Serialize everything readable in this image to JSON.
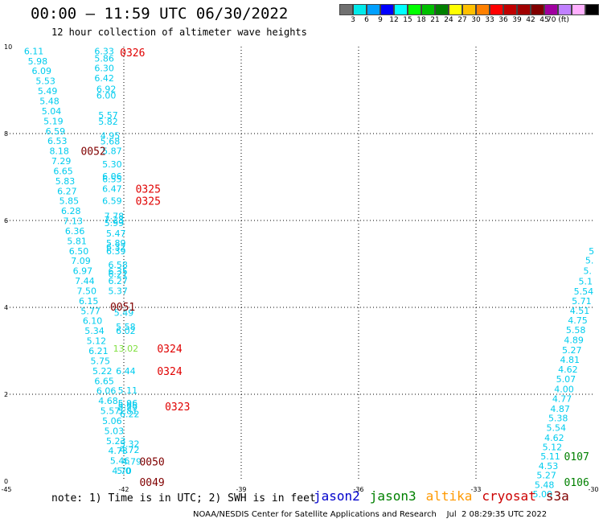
{
  "header": {
    "title": "00:00 – 11:59 UTC 06/30/2022",
    "subtitle": "12 hour collection of altimeter wave heights"
  },
  "legend": {
    "colors": [
      "#707070",
      "#00eaea",
      "#00a0ff",
      "#0000ff",
      "#00ffff",
      "#00ff00",
      "#00c000",
      "#008000",
      "#ffff00",
      "#ffc000",
      "#ff8000",
      "#ff0000",
      "#c00000",
      "#a00000",
      "#800000",
      "#a000a0",
      "#c080ff",
      "#ffb0ff",
      "#000000"
    ],
    "ticks": [
      "3",
      "6",
      "9",
      "12",
      "15",
      "18",
      "21",
      "24",
      "27",
      "30",
      "33",
      "36",
      "39",
      "42",
      "45",
      "70 (ft)"
    ]
  },
  "map": {
    "lon_range": [
      -45,
      -30
    ],
    "lat_range": [
      0,
      10
    ],
    "x_ticks": [
      "-45",
      "-42",
      "-39",
      "-36",
      "-33",
      "-30"
    ],
    "y_ticks": [
      "0",
      "2",
      "4",
      "6",
      "8",
      "10"
    ],
    "grid_x": [
      -42,
      -39,
      -36,
      -33
    ],
    "grid_y": [
      2,
      4,
      6,
      8
    ],
    "grid": "dotted"
  },
  "tracks": [
    {
      "series": "t1",
      "color": "#00ccee",
      "points": [
        {
          "lon": -44.3,
          "lat": 9.9,
          "v": "6.11"
        },
        {
          "lon": -44.2,
          "lat": 9.67,
          "v": "5.98"
        },
        {
          "lon": -44.1,
          "lat": 9.44,
          "v": "6.09"
        },
        {
          "lon": -44.0,
          "lat": 9.21,
          "v": "5.53"
        },
        {
          "lon": -43.95,
          "lat": 8.98,
          "v": "5.49"
        },
        {
          "lon": -43.9,
          "lat": 8.75,
          "v": "5.48"
        },
        {
          "lon": -43.85,
          "lat": 8.52,
          "v": "5.04"
        },
        {
          "lon": -43.8,
          "lat": 8.29,
          "v": "5.19"
        },
        {
          "lon": -43.75,
          "lat": 8.06,
          "v": "6.59"
        },
        {
          "lon": -43.7,
          "lat": 7.83,
          "v": "6.53"
        },
        {
          "lon": -43.65,
          "lat": 7.6,
          "v": "8.18"
        },
        {
          "lon": -43.6,
          "lat": 7.37,
          "v": "7.29"
        },
        {
          "lon": -43.55,
          "lat": 7.14,
          "v": "6.65"
        },
        {
          "lon": -43.5,
          "lat": 6.91,
          "v": "5.83"
        },
        {
          "lon": -43.45,
          "lat": 6.68,
          "v": "6.27"
        },
        {
          "lon": -43.4,
          "lat": 6.45,
          "v": "5.85"
        },
        {
          "lon": -43.35,
          "lat": 6.22,
          "v": "6.28"
        },
        {
          "lon": -43.3,
          "lat": 5.99,
          "v": "7.13"
        },
        {
          "lon": -43.25,
          "lat": 5.76,
          "v": "6.36"
        },
        {
          "lon": -43.2,
          "lat": 5.53,
          "v": "5.81"
        },
        {
          "lon": -43.15,
          "lat": 5.3,
          "v": "6.50"
        },
        {
          "lon": -43.1,
          "lat": 5.07,
          "v": "7.09"
        },
        {
          "lon": -43.05,
          "lat": 4.84,
          "v": "6.97"
        },
        {
          "lon": -43.0,
          "lat": 4.61,
          "v": "7.44"
        },
        {
          "lon": -42.95,
          "lat": 4.38,
          "v": "7.50"
        },
        {
          "lon": -42.9,
          "lat": 4.15,
          "v": "6.15"
        },
        {
          "lon": -42.85,
          "lat": 3.92,
          "v": "5.77"
        },
        {
          "lon": -42.8,
          "lat": 3.69,
          "v": "6.10"
        },
        {
          "lon": -42.75,
          "lat": 3.46,
          "v": "5.34"
        },
        {
          "lon": -42.7,
          "lat": 3.23,
          "v": "5.12"
        },
        {
          "lon": -42.65,
          "lat": 3.0,
          "v": "6.21"
        },
        {
          "lon": -42.6,
          "lat": 2.77,
          "v": "5.75"
        },
        {
          "lon": -42.55,
          "lat": 2.54,
          "v": "5.22"
        },
        {
          "lon": -42.5,
          "lat": 2.31,
          "v": "6.65"
        },
        {
          "lon": -42.45,
          "lat": 2.08,
          "v": "6.06"
        },
        {
          "lon": -42.4,
          "lat": 1.85,
          "v": "4.68"
        },
        {
          "lon": -42.35,
          "lat": 1.62,
          "v": "5.57"
        },
        {
          "lon": -42.3,
          "lat": 1.39,
          "v": "5.06"
        },
        {
          "lon": -42.25,
          "lat": 1.16,
          "v": "5.03"
        },
        {
          "lon": -42.2,
          "lat": 0.93,
          "v": "5.23"
        },
        {
          "lon": -42.15,
          "lat": 0.7,
          "v": "4.73"
        },
        {
          "lon": -42.1,
          "lat": 0.47,
          "v": "5.46"
        },
        {
          "lon": -42.05,
          "lat": 0.24,
          "v": "4.70"
        },
        {
          "lon": -42.0,
          "lat": 0.24,
          "v": "5.0"
        }
      ]
    },
    {
      "series": "t2",
      "color": "#00ccee",
      "points": [
        {
          "lon": -42.5,
          "lat": 9.9,
          "v": "6.33"
        },
        {
          "lon": -42.5,
          "lat": 9.73,
          "v": "5.86"
        },
        {
          "lon": -42.5,
          "lat": 9.51,
          "v": "6.30"
        },
        {
          "lon": -42.5,
          "lat": 9.28,
          "v": "6.42"
        },
        {
          "lon": -42.45,
          "lat": 9.03,
          "v": "6.92"
        },
        {
          "lon": -42.45,
          "lat": 8.88,
          "v": "6.00"
        },
        {
          "lon": -42.4,
          "lat": 8.43,
          "v": "5.57"
        },
        {
          "lon": -42.4,
          "lat": 8.28,
          "v": "5.82"
        },
        {
          "lon": -42.35,
          "lat": 7.95,
          "v": "4.95"
        },
        {
          "lon": -42.35,
          "lat": 7.82,
          "v": "5.68"
        },
        {
          "lon": -42.3,
          "lat": 7.6,
          "v": "5.87"
        },
        {
          "lon": -42.3,
          "lat": 7.3,
          "v": "5.30"
        },
        {
          "lon": -42.3,
          "lat": 7.02,
          "v": "6.06"
        },
        {
          "lon": -42.3,
          "lat": 6.95,
          "v": "6.55"
        },
        {
          "lon": -42.3,
          "lat": 6.73,
          "v": "6.47"
        },
        {
          "lon": -42.3,
          "lat": 6.45,
          "v": "6.59"
        },
        {
          "lon": -42.25,
          "lat": 6.1,
          "v": "7.78"
        },
        {
          "lon": -42.25,
          "lat": 6.02,
          "v": "7.23"
        },
        {
          "lon": -42.25,
          "lat": 5.94,
          "v": "5.99"
        },
        {
          "lon": -42.2,
          "lat": 5.7,
          "v": "5.47"
        },
        {
          "lon": -42.2,
          "lat": 5.48,
          "v": "5.89"
        },
        {
          "lon": -42.2,
          "lat": 5.39,
          "v": "6.32"
        },
        {
          "lon": -42.2,
          "lat": 5.3,
          "v": "6.39"
        },
        {
          "lon": -42.15,
          "lat": 4.98,
          "v": "6.58"
        },
        {
          "lon": -42.15,
          "lat": 4.83,
          "v": "6.35"
        },
        {
          "lon": -42.15,
          "lat": 4.77,
          "v": "6.21"
        },
        {
          "lon": -42.15,
          "lat": 4.61,
          "v": "6.27"
        },
        {
          "lon": -42.15,
          "lat": 4.38,
          "v": "5.37"
        },
        {
          "lon": -42.0,
          "lat": 3.88,
          "v": "5.49"
        },
        {
          "lon": -41.95,
          "lat": 3.56,
          "v": "5.58"
        },
        {
          "lon": -41.95,
          "lat": 3.46,
          "v": "6.02"
        },
        {
          "lon": -41.95,
          "lat": 2.54,
          "v": "6.44"
        },
        {
          "lon": -41.9,
          "lat": 2.09,
          "v": "5.11"
        },
        {
          "lon": -41.9,
          "lat": 1.8,
          "v": "5.96"
        },
        {
          "lon": -41.9,
          "lat": 1.75,
          "v": "5.65"
        },
        {
          "lon": -41.9,
          "lat": 1.7,
          "v": "5.79"
        },
        {
          "lon": -41.9,
          "lat": 1.62,
          "v": "5.81"
        },
        {
          "lon": -41.85,
          "lat": 1.55,
          "v": "6.22"
        },
        {
          "lon": -41.85,
          "lat": 0.86,
          "v": "5.32"
        },
        {
          "lon": -41.85,
          "lat": 0.72,
          "v": "4.72"
        },
        {
          "lon": -41.8,
          "lat": 0.45,
          "v": "4.79"
        }
      ]
    },
    {
      "series": "t3",
      "color": "#00ccee",
      "points": [
        {
          "lon": -30.05,
          "lat": 5.3,
          "v": "5"
        },
        {
          "lon": -30.1,
          "lat": 5.08,
          "v": "5."
        },
        {
          "lon": -30.15,
          "lat": 4.84,
          "v": "5."
        },
        {
          "lon": -30.2,
          "lat": 4.6,
          "v": "5.1"
        },
        {
          "lon": -30.25,
          "lat": 4.37,
          "v": "5.54"
        },
        {
          "lon": -30.3,
          "lat": 4.15,
          "v": "5.71"
        },
        {
          "lon": -30.35,
          "lat": 3.93,
          "v": "4.51"
        },
        {
          "lon": -30.4,
          "lat": 3.7,
          "v": "4.75"
        },
        {
          "lon": -30.45,
          "lat": 3.48,
          "v": "5.58"
        },
        {
          "lon": -30.5,
          "lat": 3.25,
          "v": "4.89"
        },
        {
          "lon": -30.55,
          "lat": 3.02,
          "v": "5.27"
        },
        {
          "lon": -30.6,
          "lat": 2.8,
          "v": "4.81"
        },
        {
          "lon": -30.65,
          "lat": 2.57,
          "v": "4.62"
        },
        {
          "lon": -30.7,
          "lat": 2.35,
          "v": "5.07"
        },
        {
          "lon": -30.75,
          "lat": 2.12,
          "v": "4.00"
        },
        {
          "lon": -30.8,
          "lat": 1.9,
          "v": "4.77"
        },
        {
          "lon": -30.85,
          "lat": 1.67,
          "v": "4.87"
        },
        {
          "lon": -30.9,
          "lat": 1.45,
          "v": "5.38"
        },
        {
          "lon": -30.95,
          "lat": 1.23,
          "v": "5.54"
        },
        {
          "lon": -31.0,
          "lat": 1.0,
          "v": "4.62"
        },
        {
          "lon": -31.05,
          "lat": 0.79,
          "v": "5.12"
        },
        {
          "lon": -31.1,
          "lat": 0.57,
          "v": "5.11"
        },
        {
          "lon": -31.15,
          "lat": 0.35,
          "v": "4.53"
        },
        {
          "lon": -31.2,
          "lat": 0.14,
          "v": "5.27"
        },
        {
          "lon": -31.25,
          "lat": -0.08,
          "v": "5.48"
        },
        {
          "lon": -31.3,
          "lat": -0.3,
          "v": "5.00"
        }
      ]
    },
    {
      "series": "t4",
      "color": "#80e040",
      "points": [
        {
          "lon": -41.95,
          "lat": 3.06,
          "v": "13.02"
        }
      ]
    }
  ],
  "time_labels": [
    {
      "lon": -42.1,
      "lat": 9.87,
      "t": "0326",
      "color": "#e00000"
    },
    {
      "lon": -43.1,
      "lat": 7.6,
      "t": "0052",
      "color": "#800000"
    },
    {
      "lon": -41.7,
      "lat": 6.73,
      "t": "0325",
      "color": "#e00000"
    },
    {
      "lon": -41.7,
      "lat": 6.45,
      "t": "0325",
      "color": "#e00000"
    },
    {
      "lon": -42.35,
      "lat": 4.02,
      "t": "0051",
      "color": "#800000"
    },
    {
      "lon": -41.15,
      "lat": 3.06,
      "t": "0324",
      "color": "#e00000"
    },
    {
      "lon": -41.15,
      "lat": 2.54,
      "t": "0324",
      "color": "#e00000"
    },
    {
      "lon": -40.95,
      "lat": 1.72,
      "t": "0323",
      "color": "#e00000"
    },
    {
      "lon": -41.6,
      "lat": 0.45,
      "t": "0050",
      "color": "#800000"
    },
    {
      "lon": -41.6,
      "lat": -0.02,
      "t": "0049",
      "color": "#800000"
    },
    {
      "lon": -30.75,
      "lat": 0.57,
      "t": "0107",
      "color": "#008000"
    },
    {
      "lon": -30.75,
      "lat": -0.02,
      "t": "0106",
      "color": "#008000"
    }
  ],
  "footer": {
    "note": "note: 1) Time is in UTC; 2) SWH is in feet",
    "satellites": [
      {
        "name": "jason2",
        "color": "#0000cc"
      },
      {
        "name": "jason3",
        "color": "#008000"
      },
      {
        "name": "altika",
        "color": "#ff9900"
      },
      {
        "name": "cryosat",
        "color": "#cc0000"
      },
      {
        "name": "s3a",
        "color": "#800000"
      }
    ],
    "credit": "NOAA/NESDIS Center for Satellite Applications and Research    Jul  2 08:29:35 UTC 2022"
  }
}
